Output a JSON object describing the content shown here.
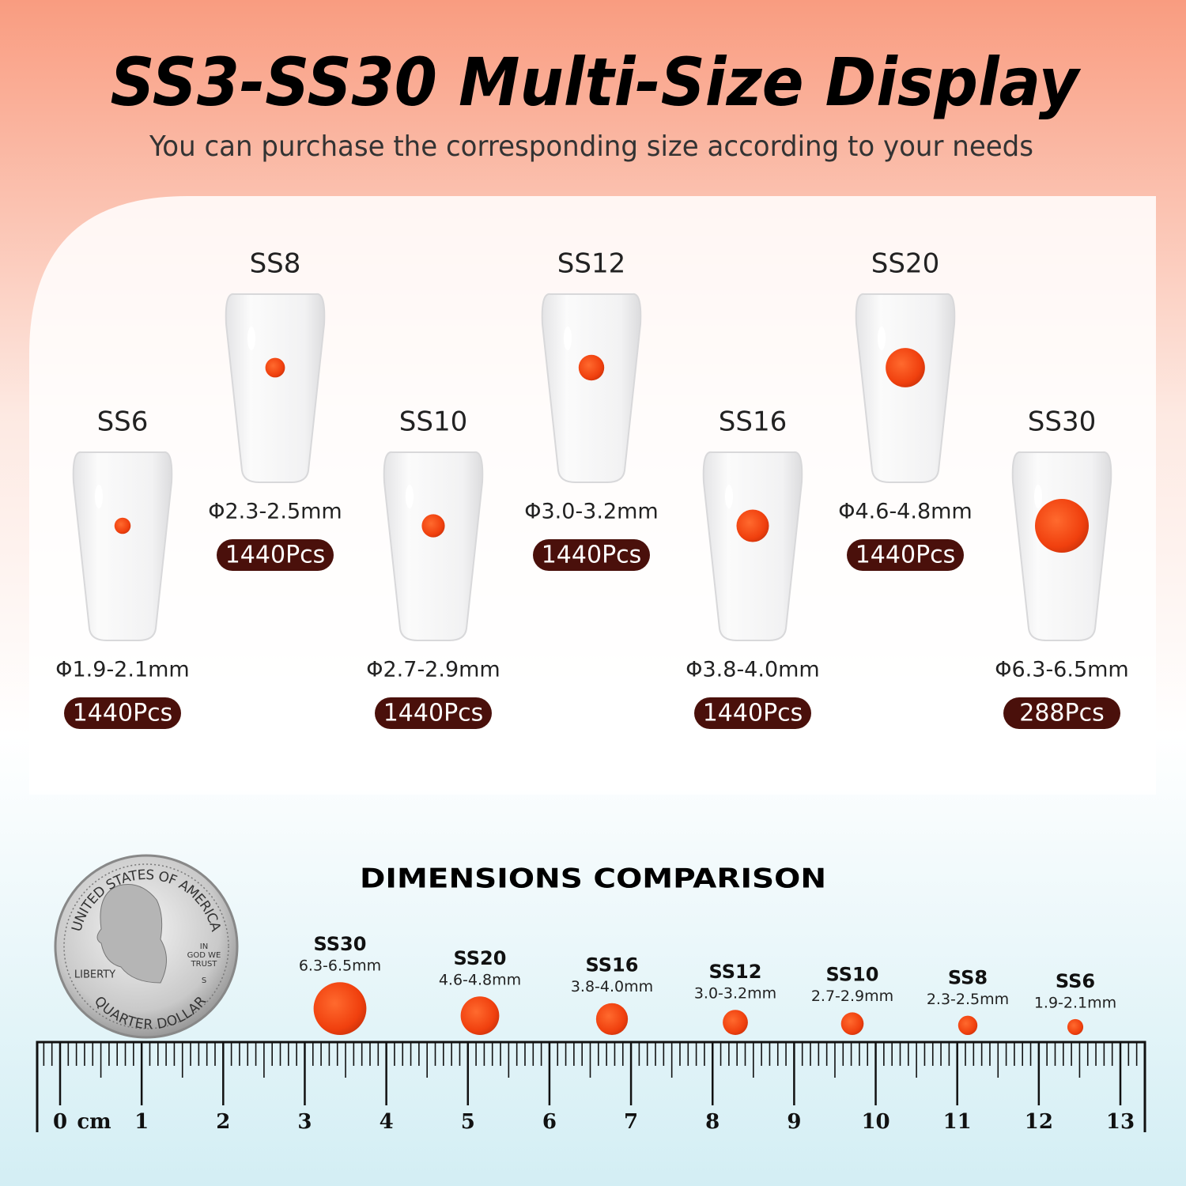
{
  "header": {
    "title": "SS3-SS30 Multi-Size Display",
    "subtitle": "You can purchase the corresponding size according to your needs"
  },
  "nails": [
    {
      "size": "SS6",
      "diameter": "Φ1.9-2.1mm",
      "count": "1440Pcs"
    },
    {
      "size": "SS8",
      "diameter": "Φ2.3-2.5mm",
      "count": "1440Pcs"
    },
    {
      "size": "SS10",
      "diameter": "Φ2.7-2.9mm",
      "count": "1440Pcs"
    },
    {
      "size": "SS12",
      "diameter": "Φ3.0-3.2mm",
      "count": "1440Pcs"
    },
    {
      "size": "SS16",
      "diameter": "Φ3.8-4.0mm",
      "count": "1440Pcs"
    },
    {
      "size": "SS20",
      "diameter": "Φ4.6-4.8mm",
      "count": "1440Pcs"
    },
    {
      "size": "SS30",
      "diameter": "Φ6.3-6.5mm",
      "count": "288Pcs"
    }
  ],
  "comparison": {
    "title": "DIMENSIONS COMPARISON",
    "items": [
      {
        "size": "SS30",
        "diameter": "6.3-6.5mm"
      },
      {
        "size": "SS20",
        "diameter": "4.6-4.8mm"
      },
      {
        "size": "SS16",
        "diameter": "3.8-4.0mm"
      },
      {
        "size": "SS12",
        "diameter": "3.0-3.2mm"
      },
      {
        "size": "SS10",
        "diameter": "2.7-2.9mm"
      },
      {
        "size": "SS8",
        "diameter": "2.3-2.5mm"
      },
      {
        "size": "SS6",
        "diameter": "1.9-2.1mm"
      }
    ]
  },
  "coin": {
    "legend": "UNITED STATES OF AMERICA",
    "motto_1": "IN",
    "motto_2": "GOD WE",
    "motto_3": "TRUST",
    "liberty": "LIBERTY",
    "denomination": "QUARTER DOLLAR",
    "mint": "S"
  },
  "ruler": {
    "unit": "cm",
    "labels": [
      "0",
      "1",
      "2",
      "3",
      "4",
      "5",
      "6",
      "7",
      "8",
      "9",
      "10",
      "11",
      "12",
      "13"
    ]
  }
}
